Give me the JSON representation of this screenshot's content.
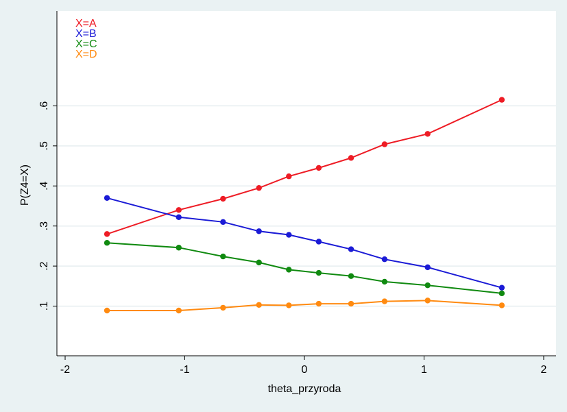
{
  "chart_data": {
    "type": "line",
    "title": "",
    "xlabel": "theta_przyroda",
    "ylabel": "P(Z4=X)",
    "xlim": [
      -2,
      2
    ],
    "ylim": [
      0,
      0.8
    ],
    "x_ticks": [
      -2,
      -1,
      0,
      1,
      2
    ],
    "x_tick_labels": [
      "-2",
      "-1",
      "0",
      "1",
      "2"
    ],
    "y_ticks": [
      0.1,
      0.2,
      0.3,
      0.4,
      0.5,
      0.6
    ],
    "y_tick_labels": [
      ".1",
      ".2",
      ".3",
      ".4",
      ".5",
      ".6"
    ],
    "grid": true,
    "legend_position": "top-left",
    "x": [
      -1.65,
      -1.05,
      -0.68,
      -0.38,
      -0.13,
      0.12,
      0.39,
      0.67,
      1.03,
      1.65
    ],
    "series": [
      {
        "name": "X=A",
        "color": "#ee1c25",
        "values": [
          0.28,
          0.34,
          0.368,
          0.395,
          0.424,
          0.445,
          0.47,
          0.504,
          0.53,
          0.615
        ]
      },
      {
        "name": "X=B",
        "color": "#1b1bd6",
        "values": [
          0.37,
          0.322,
          0.31,
          0.287,
          0.278,
          0.261,
          0.242,
          0.217,
          0.197,
          0.146
        ]
      },
      {
        "name": "X=C",
        "color": "#108a10",
        "values": [
          0.258,
          0.246,
          0.224,
          0.209,
          0.191,
          0.183,
          0.175,
          0.161,
          0.152,
          0.132
        ]
      },
      {
        "name": "X=D",
        "color": "#ff8a10",
        "values": [
          0.089,
          0.089,
          0.096,
          0.103,
          0.102,
          0.106,
          0.106,
          0.112,
          0.114,
          0.102
        ]
      }
    ]
  }
}
